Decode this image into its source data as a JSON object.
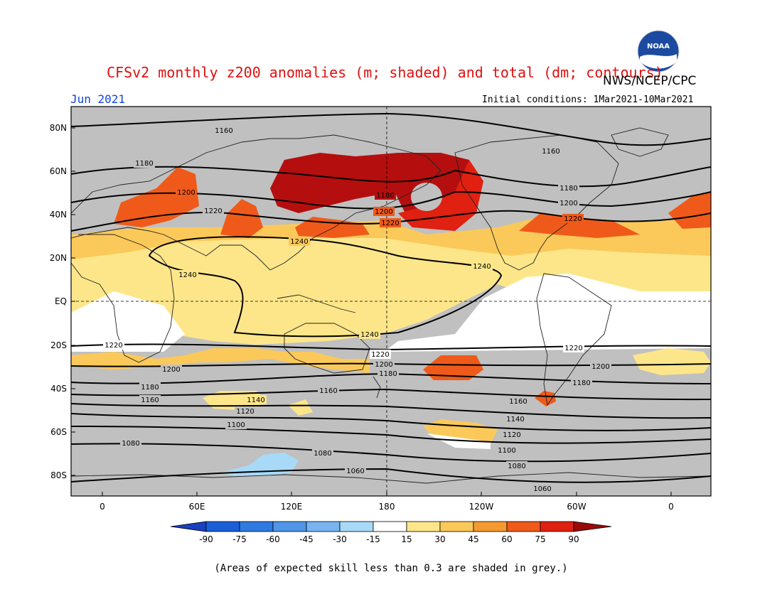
{
  "header": {
    "title": "CFSv2 monthly z200 anomalies (m; shaded) and total (dm; contours)",
    "agency": "NWS/NCEP/CPC",
    "logo_text": "NOAA",
    "month": "Jun 2021",
    "initial_conditions": "Initial conditions: 1Mar2021-10Mar2021"
  },
  "map": {
    "lat_labels": [
      "80N",
      "60N",
      "40N",
      "20N",
      "EQ",
      "20S",
      "40S",
      "60S",
      "80S"
    ],
    "lon_labels": [
      "0",
      "60E",
      "120E",
      "180",
      "120W",
      "60W",
      "0"
    ],
    "background_color": "#c0c0c0",
    "contours": [
      {
        "value": 1160,
        "label": "1160"
      },
      {
        "value": 1180,
        "label": "1180"
      },
      {
        "value": 1200,
        "label": "1200"
      },
      {
        "value": 1220,
        "label": "1220"
      },
      {
        "value": 1240,
        "label": "1240"
      },
      {
        "value": 1160,
        "label": "1160"
      },
      {
        "value": 1140,
        "label": "1140"
      },
      {
        "value": 1120,
        "label": "1120"
      },
      {
        "value": 1100,
        "label": "1100"
      },
      {
        "value": 1080,
        "label": "1080"
      },
      {
        "value": 1060,
        "label": "1060"
      }
    ]
  },
  "colorbar": {
    "labels": [
      "-90",
      "-75",
      "-60",
      "-45",
      "-30",
      "-15",
      "15",
      "30",
      "45",
      "60",
      "75",
      "90"
    ],
    "colors": [
      "#1a5fd8",
      "#2f7ae0",
      "#4f95e8",
      "#78b4f0",
      "#a8daf8",
      "#ffffff",
      "#fde68a",
      "#fbc95a",
      "#f59a30",
      "#ef5a1a",
      "#e02010",
      "#b50e0e"
    ],
    "low_arrow_color": "#1840c0",
    "high_arrow_color": "#9a0a0a"
  },
  "footnote": "(Areas of expected skill less than 0.3 are shaded in grey.)"
}
